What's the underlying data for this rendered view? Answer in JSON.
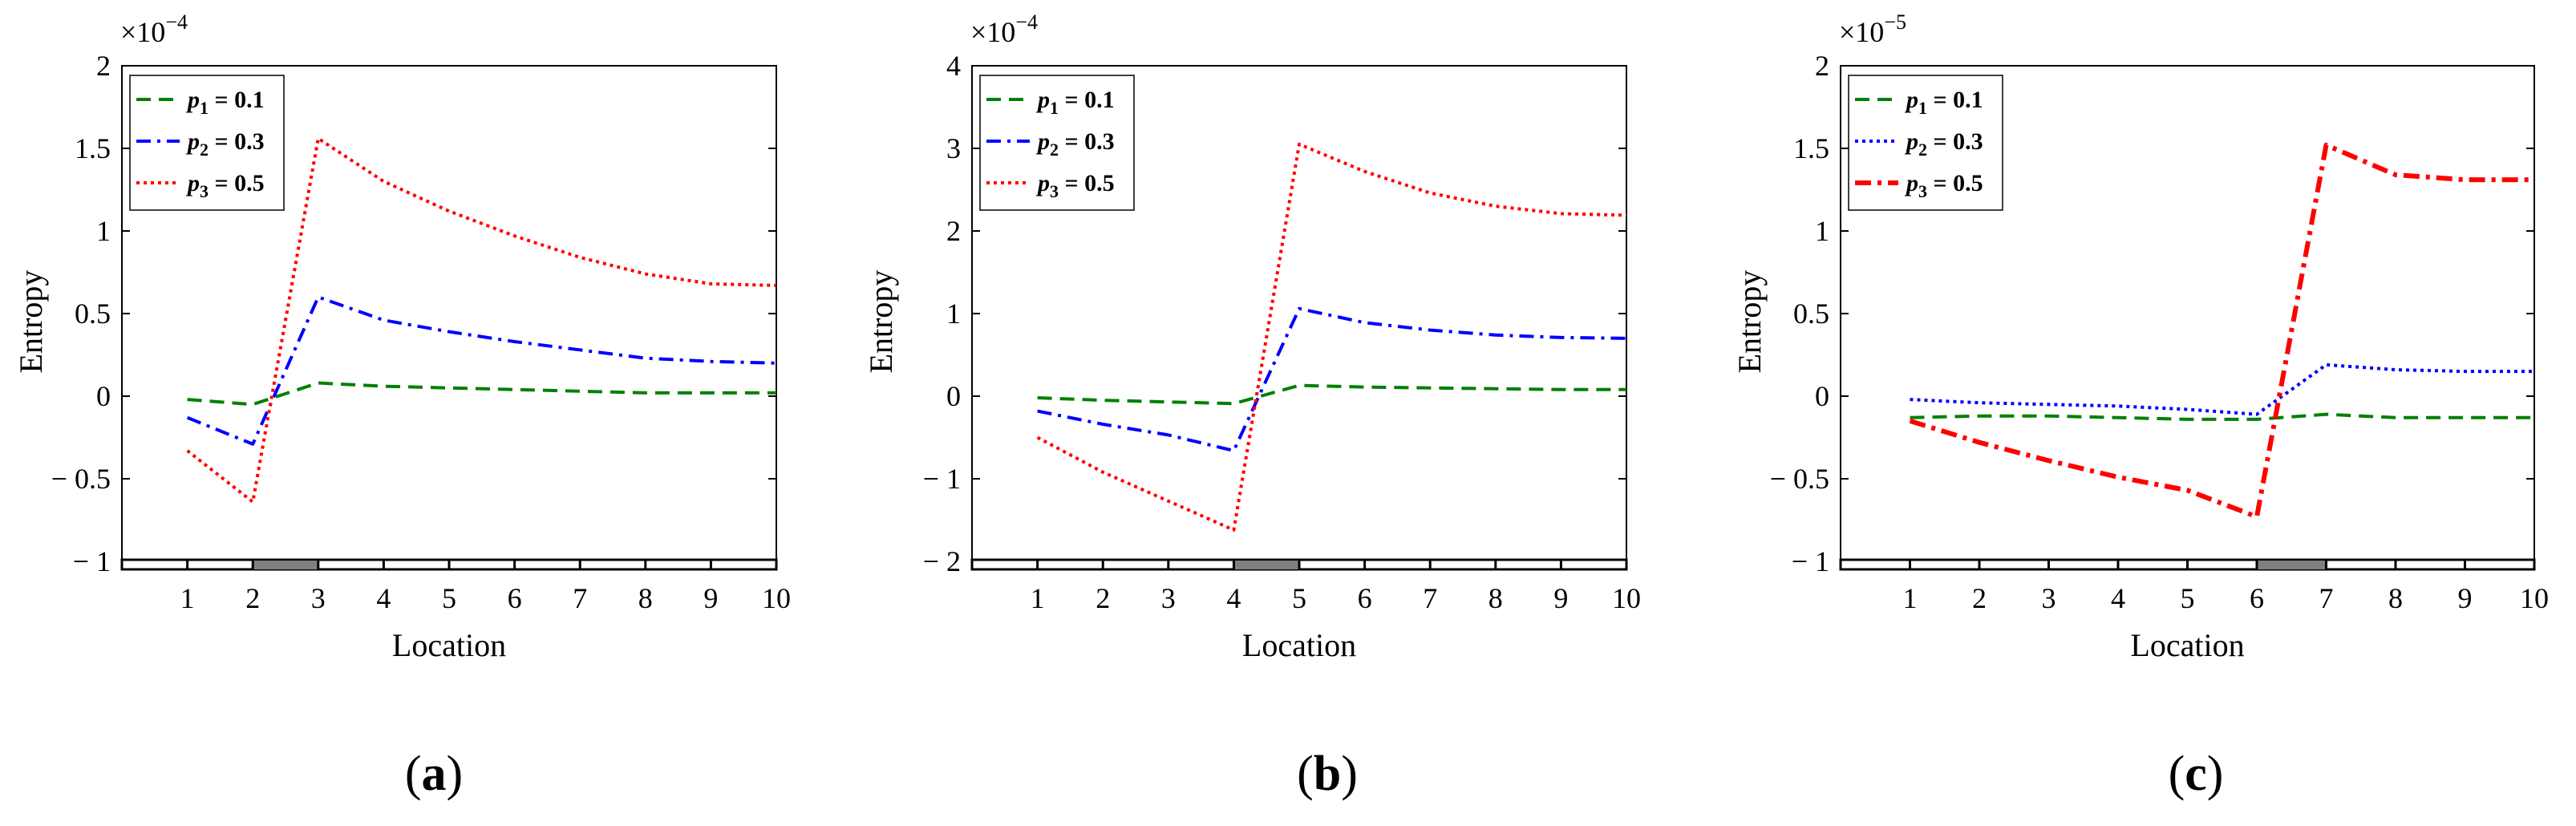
{
  "chart_data": [
    {
      "type": "line",
      "panel_label": "(a)",
      "exponent_label": "×10",
      "exponent_power": "−4",
      "xlabel": "Location",
      "ylabel": "Entropy",
      "x": [
        1,
        2,
        3,
        4,
        5,
        6,
        7,
        8,
        9,
        10
      ],
      "xlim": [
        0,
        10
      ],
      "ylim": [
        -1,
        2
      ],
      "yticks": [
        -1,
        -0.5,
        0,
        0.5,
        1,
        1.5,
        2
      ],
      "ytick_labels": [
        "− 1",
        "− 0.5",
        "0",
        "0.5",
        "1",
        "1.5",
        "2"
      ],
      "xtick_labels": [
        "1",
        "2",
        "3",
        "4",
        "5",
        "6",
        "7",
        "8",
        "9",
        "10"
      ],
      "highlight_segment": [
        2,
        3
      ],
      "legend_position": "top-left",
      "series": [
        {
          "name": "p_1 = 0.1",
          "sym": "p",
          "sub": "1",
          "val": " = 0.1",
          "color": "#008000",
          "dash": "18,10",
          "values": [
            -0.02,
            -0.05,
            0.08,
            0.06,
            0.05,
            0.04,
            0.03,
            0.02,
            0.02,
            0.02
          ]
        },
        {
          "name": "p_2 = 0.3",
          "sym": "p",
          "sub": "2",
          "val": " = 0.3",
          "color": "#0000ff",
          "dash": "18,8,4,8",
          "values": [
            -0.13,
            -0.29,
            0.6,
            0.46,
            0.39,
            0.33,
            0.28,
            0.23,
            0.21,
            0.2
          ]
        },
        {
          "name": "p_3 = 0.5",
          "sym": "p",
          "sub": "3",
          "val": " = 0.5",
          "color": "#ff0000",
          "dash": "4,5",
          "values": [
            -0.33,
            -0.64,
            1.56,
            1.3,
            1.12,
            0.97,
            0.84,
            0.74,
            0.68,
            0.67
          ]
        }
      ]
    },
    {
      "type": "line",
      "panel_label": "(b)",
      "exponent_label": "×10",
      "exponent_power": "−4",
      "xlabel": "Location",
      "ylabel": "Entropy",
      "x": [
        1,
        2,
        3,
        4,
        5,
        6,
        7,
        8,
        9,
        10
      ],
      "xlim": [
        0,
        10
      ],
      "ylim": [
        -2,
        4
      ],
      "yticks": [
        -2,
        -1,
        0,
        1,
        2,
        3,
        4
      ],
      "ytick_labels": [
        "− 2",
        "− 1",
        "0",
        "1",
        "2",
        "3",
        "4"
      ],
      "xtick_labels": [
        "1",
        "2",
        "3",
        "4",
        "5",
        "6",
        "7",
        "8",
        "9",
        "10"
      ],
      "highlight_segment": [
        4,
        5
      ],
      "legend_position": "top-left",
      "series": [
        {
          "name": "p_1 = 0.1",
          "sym": "p",
          "sub": "1",
          "val": " = 0.1",
          "color": "#008000",
          "dash": "18,10",
          "values": [
            -0.02,
            -0.05,
            -0.07,
            -0.09,
            0.13,
            0.11,
            0.1,
            0.09,
            0.08,
            0.08
          ]
        },
        {
          "name": "p_2 = 0.3",
          "sym": "p",
          "sub": "2",
          "val": " = 0.3",
          "color": "#0000ff",
          "dash": "18,8,4,8",
          "values": [
            -0.18,
            -0.34,
            -0.47,
            -0.66,
            1.06,
            0.89,
            0.8,
            0.74,
            0.71,
            0.7
          ]
        },
        {
          "name": "p_3 = 0.5",
          "sym": "p",
          "sub": "3",
          "val": " = 0.5",
          "color": "#ff0000",
          "dash": "4,5",
          "values": [
            -0.5,
            -0.92,
            -1.27,
            -1.62,
            3.05,
            2.72,
            2.46,
            2.3,
            2.21,
            2.19
          ]
        }
      ]
    },
    {
      "type": "line",
      "panel_label": "(c)",
      "exponent_label": "×10",
      "exponent_power": "−5",
      "xlabel": "Location",
      "ylabel": "Entropy",
      "x": [
        1,
        2,
        3,
        4,
        5,
        6,
        7,
        8,
        9,
        10
      ],
      "xlim": [
        0,
        10
      ],
      "ylim": [
        -1,
        2
      ],
      "yticks": [
        -1,
        -0.5,
        0,
        0.5,
        1,
        1.5,
        2
      ],
      "ytick_labels": [
        "− 1",
        "− 0.5",
        "0",
        "0.5",
        "1",
        "1.5",
        "2"
      ],
      "xtick_labels": [
        "1",
        "2",
        "3",
        "4",
        "5",
        "6",
        "7",
        "8",
        "9",
        "10"
      ],
      "highlight_segment": [
        6,
        7
      ],
      "legend_position": "top-left",
      "series": [
        {
          "name": "p_1 = 0.1",
          "sym": "p",
          "sub": "1",
          "val": " = 0.1",
          "color": "#008000",
          "dash": "18,10",
          "values": [
            -0.13,
            -0.12,
            -0.12,
            -0.13,
            -0.14,
            -0.14,
            -0.11,
            -0.13,
            -0.13,
            -0.13
          ]
        },
        {
          "name": "p_2 = 0.3",
          "sym": "p",
          "sub": "2",
          "val": " = 0.3",
          "color": "#0000ff",
          "dash": "4,5",
          "values": [
            -0.02,
            -0.04,
            -0.05,
            -0.06,
            -0.08,
            -0.11,
            0.19,
            0.16,
            0.15,
            0.15
          ]
        },
        {
          "name": "p_3 = 0.5",
          "sym": "p",
          "sub": "3",
          "val": " = 0.5",
          "color": "#ff0000",
          "dash": "20,8,5,8",
          "width": 6,
          "values": [
            -0.15,
            -0.28,
            -0.39,
            -0.49,
            -0.57,
            -0.73,
            1.52,
            1.34,
            1.31,
            1.31
          ]
        }
      ]
    }
  ]
}
